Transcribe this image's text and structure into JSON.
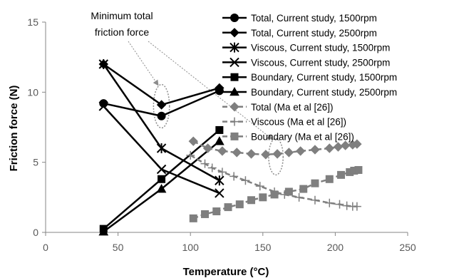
{
  "chart_data": {
    "type": "line",
    "xlabel": "Temperature (°C)",
    "ylabel": "Friction force (N)",
    "xlim": [
      0,
      250
    ],
    "ylim": [
      0,
      15
    ],
    "xticks": [
      0,
      50,
      100,
      150,
      200,
      250
    ],
    "yticks": [
      0,
      5,
      10,
      15
    ],
    "grid": false,
    "legend_position": "top-right",
    "annotation": {
      "lines": [
        "Minimum  total",
        "friction force"
      ],
      "targets": [
        {
          "cx": 80,
          "cy": 9.0,
          "rx": 5.5,
          "ry": 1.55
        },
        {
          "cx": 159,
          "cy": 5.4,
          "rx": 5,
          "ry": 1.3
        }
      ]
    },
    "series": [
      {
        "name": "Total, Current study, 1500rpm",
        "style": "solid",
        "marker": "circle",
        "color": "#000000",
        "x": [
          40,
          80,
          120
        ],
        "y": [
          9.2,
          8.3,
          10.1
        ]
      },
      {
        "name": "Total, Current study, 2500rpm",
        "style": "solid",
        "marker": "diamond",
        "color": "#000000",
        "x": [
          40,
          80,
          120
        ],
        "y": [
          12.0,
          9.1,
          10.3
        ]
      },
      {
        "name": "Viscous, Current study, 1500rpm",
        "style": "solid",
        "marker": "star",
        "color": "#000000",
        "x": [
          40,
          80,
          120
        ],
        "y": [
          12.0,
          6.0,
          3.7
        ]
      },
      {
        "name": "Viscous, Current study, 2500rpm",
        "style": "solid",
        "marker": "x",
        "color": "#000000",
        "x": [
          40,
          80,
          120
        ],
        "y": [
          9.0,
          4.5,
          2.8
        ]
      },
      {
        "name": "Boundary, Current study, 1500rpm",
        "style": "solid",
        "marker": "square",
        "color": "#000000",
        "x": [
          40,
          80,
          120
        ],
        "y": [
          0.25,
          3.8,
          7.3
        ]
      },
      {
        "name": "Boundary, Current study, 2500rpm",
        "style": "solid",
        "marker": "triangle",
        "color": "#000000",
        "x": [
          40,
          80,
          120
        ],
        "y": [
          0.05,
          3.1,
          6.5
        ]
      },
      {
        "name": "Total (Ma et al [26])",
        "style": "dashed",
        "marker": "diamond",
        "color": "#7f7f7f",
        "x": [
          102,
          112,
          122,
          132,
          142,
          152,
          160,
          168,
          176,
          186,
          196,
          202,
          207,
          212,
          215
        ],
        "y": [
          6.5,
          6.0,
          5.8,
          5.7,
          5.6,
          5.55,
          5.6,
          5.7,
          5.8,
          5.9,
          6.0,
          6.1,
          6.2,
          6.25,
          6.3
        ]
      },
      {
        "name": "Viscous (Ma et al [26])",
        "style": "dashed",
        "marker": "plus",
        "color": "#7f7f7f",
        "x": [
          100,
          110,
          115,
          122,
          130,
          138,
          148,
          158,
          165,
          175,
          186,
          196,
          203,
          208,
          212,
          215
        ],
        "y": [
          5.5,
          4.9,
          4.6,
          4.3,
          4.0,
          3.7,
          3.3,
          2.9,
          2.7,
          2.5,
          2.3,
          2.1,
          2.0,
          1.9,
          1.85,
          1.85
        ]
      },
      {
        "name": "Boundary (Ma et al [26])",
        "style": "dashed",
        "marker": "square",
        "color": "#7f7f7f",
        "x": [
          102,
          110,
          118,
          126,
          134,
          142,
          150,
          158,
          168,
          178,
          186,
          196,
          204,
          210,
          213,
          216
        ],
        "y": [
          1.0,
          1.3,
          1.5,
          1.8,
          2.0,
          2.3,
          2.5,
          2.7,
          2.9,
          3.1,
          3.5,
          3.8,
          4.1,
          4.3,
          4.4,
          4.45
        ]
      }
    ]
  }
}
